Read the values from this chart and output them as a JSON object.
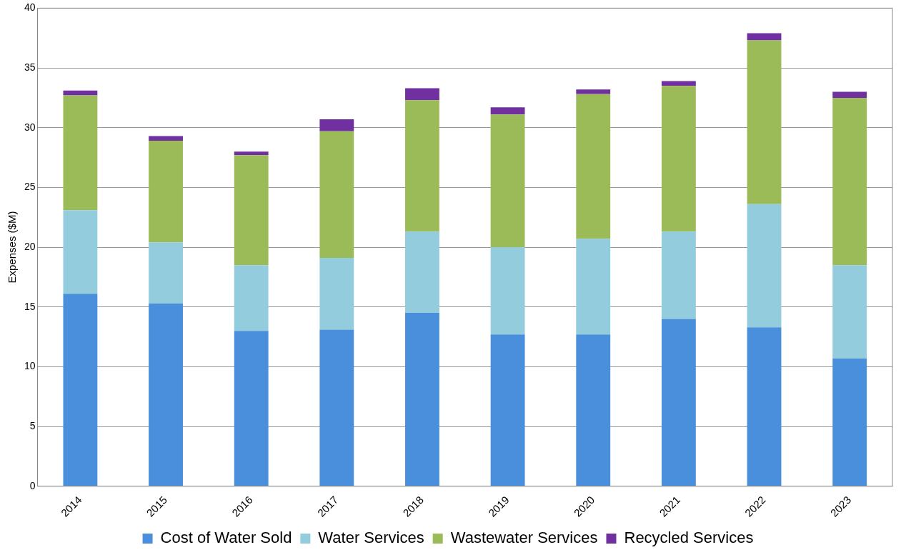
{
  "chart_data": {
    "type": "bar",
    "stacked": true,
    "ylabel": "Expenses ($M)",
    "categories": [
      "2014",
      "2015",
      "2016",
      "2017",
      "2018",
      "2019",
      "2020",
      "2021",
      "2022",
      "2023"
    ],
    "series": [
      {
        "name": "Cost of Water Sold",
        "color": "#4a8fdb",
        "values": [
          16.1,
          15.3,
          13.0,
          13.1,
          14.5,
          12.7,
          12.7,
          14.0,
          13.3,
          10.7
        ]
      },
      {
        "name": "Water Services",
        "color": "#93cddd",
        "values": [
          7.0,
          5.1,
          5.5,
          6.0,
          6.8,
          7.3,
          8.0,
          7.3,
          10.3,
          7.8
        ]
      },
      {
        "name": "Wastewater Services",
        "color": "#9bbb59",
        "values": [
          9.6,
          8.5,
          9.2,
          10.6,
          11.0,
          11.1,
          12.1,
          12.2,
          13.7,
          14.0
        ]
      },
      {
        "name": "Recycled Services",
        "color": "#7030a0",
        "values": [
          0.4,
          0.4,
          0.3,
          1.0,
          1.0,
          0.6,
          0.4,
          0.4,
          0.6,
          0.5
        ]
      }
    ],
    "ylim": [
      0,
      40
    ],
    "yticks": [
      0,
      5,
      10,
      15,
      20,
      25,
      30,
      35,
      40
    ],
    "grid": "y",
    "legend": "bottom"
  }
}
